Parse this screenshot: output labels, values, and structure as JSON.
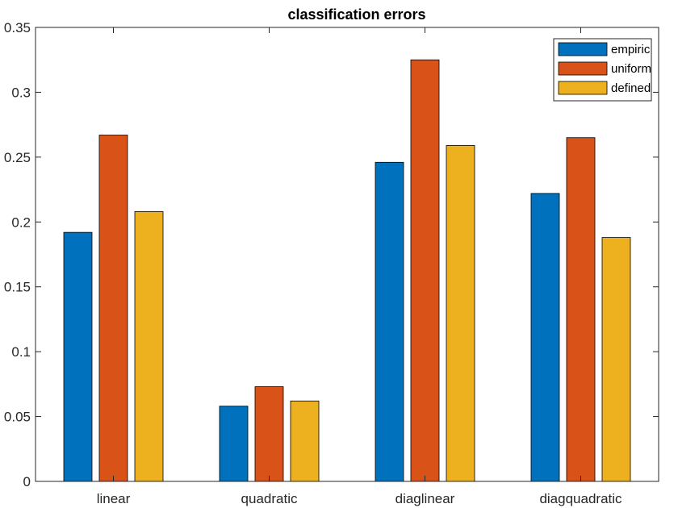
{
  "chart_data": {
    "type": "bar",
    "title": "classification errors",
    "xlabel": "",
    "ylabel": "",
    "categories": [
      "linear",
      "quadratic",
      "diaglinear",
      "diagquadratic"
    ],
    "series": [
      {
        "name": "empiric",
        "values": [
          0.192,
          0.058,
          0.246,
          0.222
        ],
        "color": "#0072BD"
      },
      {
        "name": "uniform",
        "values": [
          0.267,
          0.073,
          0.325,
          0.265
        ],
        "color": "#D95319"
      },
      {
        "name": "defined",
        "values": [
          0.208,
          0.062,
          0.259,
          0.188
        ],
        "color": "#EDB120"
      }
    ],
    "ylim": [
      0,
      0.35
    ],
    "yticks": [
      0,
      0.05,
      0.1,
      0.15,
      0.2,
      0.25,
      0.3,
      0.35
    ],
    "ytick_labels": [
      "0",
      "0.05",
      "0.1",
      "0.15",
      "0.2",
      "0.25",
      "0.3",
      "0.35"
    ],
    "grid": false,
    "legend_position": "top-right"
  }
}
